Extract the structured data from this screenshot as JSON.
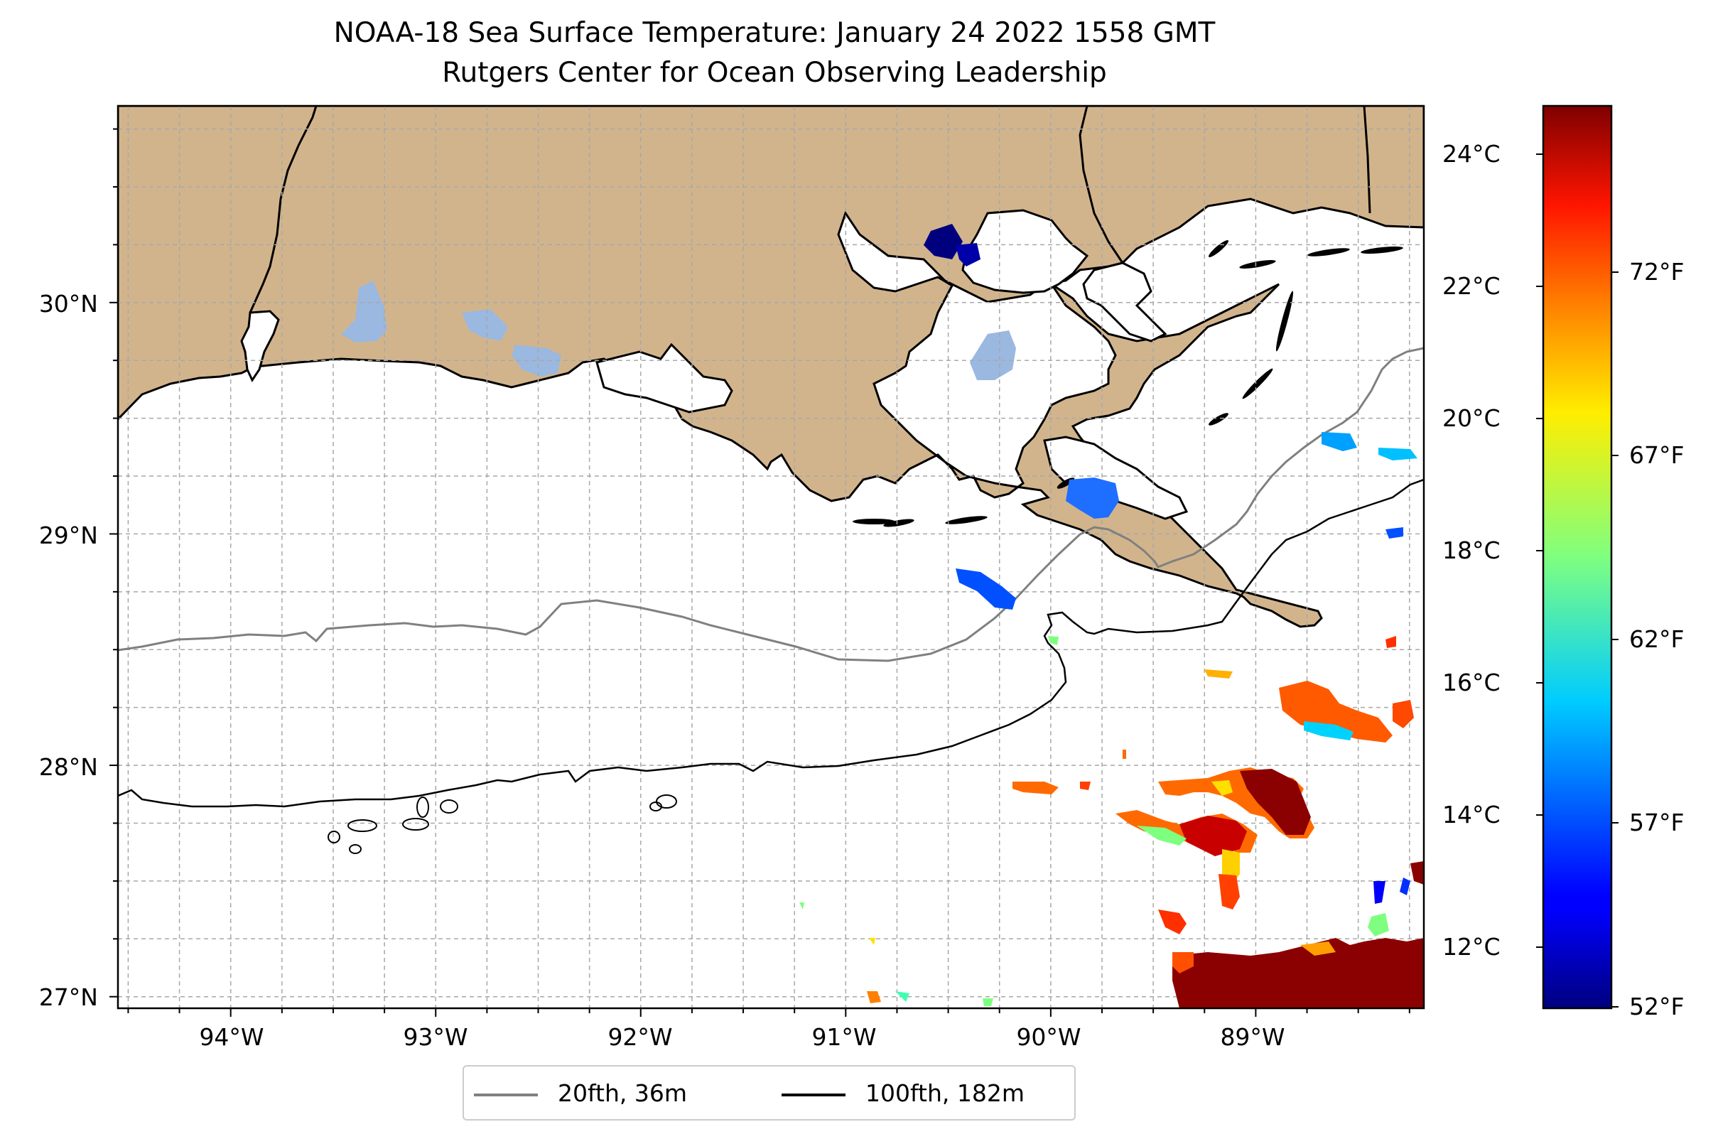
{
  "title": "NOAA-18 Sea Surface Temperature: January 24 2022 1558 GMT",
  "subtitle": "Rutgers Center for Ocean Observing Leadership",
  "map": {
    "lat_range": [
      26.95,
      30.85
    ],
    "lon_range": [
      -94.55,
      -88.18
    ],
    "lat_ticks": [
      "30°N",
      "29°N",
      "28°N",
      "27°N"
    ],
    "lon_ticks": [
      "94°W",
      "93°W",
      "92°W",
      "91°W",
      "90°W",
      "89°W"
    ],
    "land_color": "#d2b48c",
    "lake_color": "#9ab8e0"
  },
  "colorbar": {
    "colormap": "jet",
    "celsius_labels": [
      "24°C",
      "22°C",
      "20°C",
      "18°C",
      "16°C",
      "14°C",
      "12°C"
    ],
    "fahrenheit_labels": [
      "72°F",
      "67°F",
      "62°F",
      "57°F",
      "52°F"
    ]
  },
  "legend": [
    {
      "label": "20fth, 36m",
      "color": "#808080"
    },
    {
      "label": "100fth, 182m",
      "color": "#000000"
    }
  ]
}
